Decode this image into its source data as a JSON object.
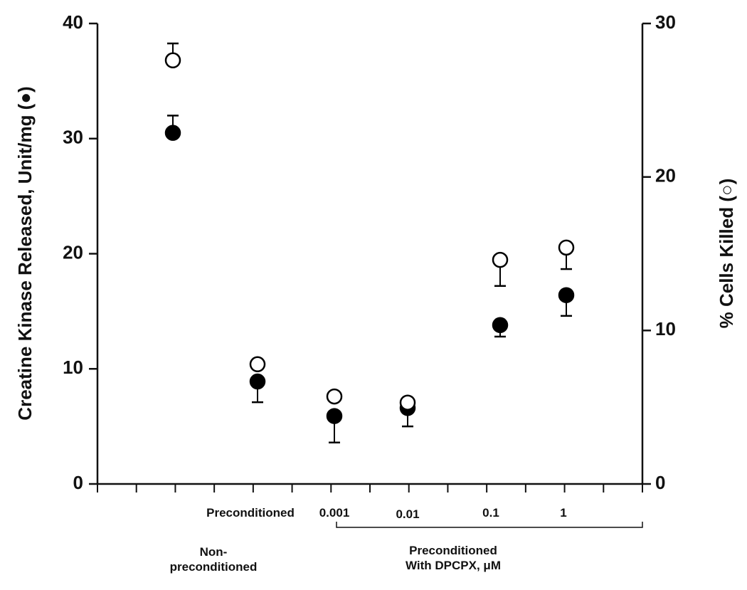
{
  "chart_data": {
    "type": "scatter",
    "y_label": "Creatine Kinase Released, Unit/mg (●)",
    "y2_label": "% Cells Killed (○)",
    "categories": [
      "Non-\npreconditioned",
      "Preconditioned",
      "0.001",
      "0.01",
      "0.1",
      "1"
    ],
    "group_label": "Preconditioned\nWith DPCPX, μM",
    "ylim": [
      0,
      40
    ],
    "yticks": [
      0,
      10,
      20,
      30,
      40
    ],
    "y2lim": [
      0,
      30
    ],
    "y2ticks": [
      0,
      10,
      20,
      30
    ],
    "series": [
      {
        "name": "Creatine Kinase Released",
        "color": "#000000",
        "marker_fill": "#000000",
        "axis": "y",
        "values": [
          30.5,
          8.9,
          5.9,
          6.6,
          13.8,
          16.4
        ],
        "errors": [
          1.5,
          1.8,
          2.3,
          1.6,
          1.0,
          1.8
        ],
        "error_direction": [
          "up",
          "down",
          "down",
          "down",
          "down",
          "down"
        ]
      },
      {
        "name": "% Cells Killed",
        "color": "#000000",
        "marker_fill": "#ffffff",
        "axis": "y2",
        "values": [
          27.6,
          7.8,
          5.7,
          5.3,
          14.6,
          15.4
        ],
        "errors": [
          1.1,
          0,
          0,
          0,
          1.7,
          1.4
        ],
        "error_direction": [
          "up",
          "down",
          "down",
          "down",
          "down",
          "down"
        ]
      }
    ]
  }
}
